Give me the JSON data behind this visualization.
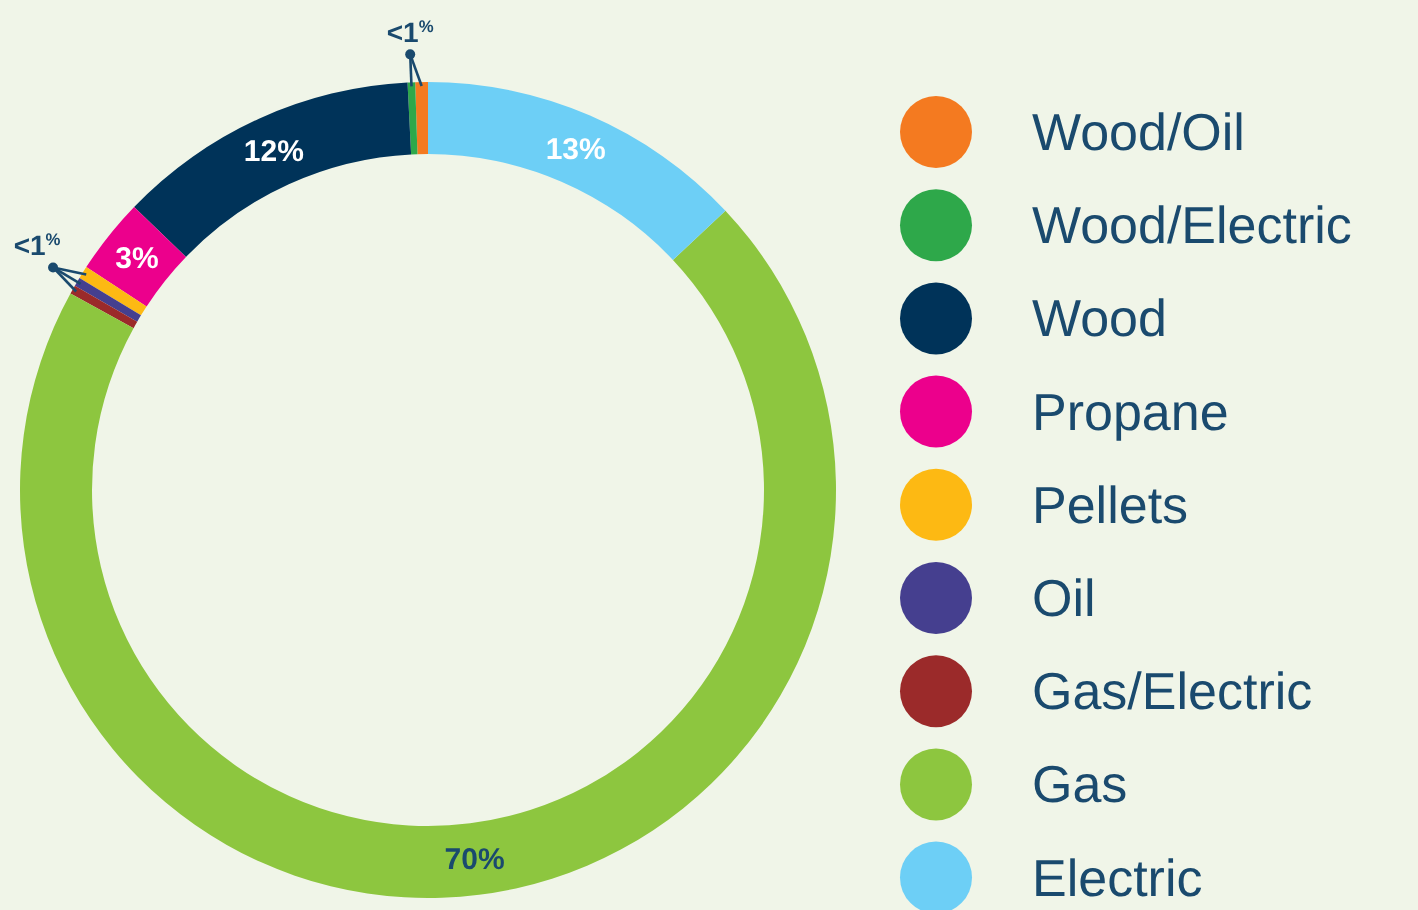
{
  "chart_data": {
    "type": "donut",
    "categories": [
      "Wood/Oil",
      "Wood/Electric",
      "Wood",
      "Propane",
      "Pellets",
      "Oil",
      "Gas/Electric",
      "Gas",
      "Electric"
    ],
    "values": [
      0.5,
      0.3,
      12,
      3,
      0.5,
      0.35,
      0.35,
      70,
      13
    ],
    "colors": [
      "#f47a20",
      "#2ea84a",
      "#003359",
      "#ec008c",
      "#fdb913",
      "#453f8f",
      "#9b2a2a",
      "#8dc63f",
      "#6dcff6"
    ],
    "value_labels": [
      null,
      "<1$^{%}$",
      "12%",
      "3%",
      null,
      "<1$^{%}$",
      null,
      "70%",
      "13%"
    ],
    "legend": "right"
  }
}
